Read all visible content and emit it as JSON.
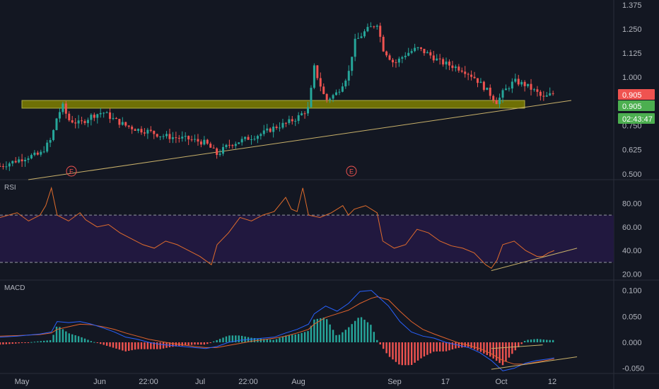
{
  "colors": {
    "background": "#131722",
    "up": "#26a69a",
    "down": "#ef5350",
    "support_zone": "#808000",
    "trendline": "#c8b06a",
    "rsi_line": "#e06c2c",
    "rsi_band": "#21183f",
    "macd_line": "#2962ff",
    "signal_line": "#e0622c",
    "hist_up": "#26a69a",
    "hist_down": "#ef5350",
    "price_badge": "#ef5350",
    "close_badge": "#4caf50"
  },
  "chart_data": [
    {
      "type": "candlestick",
      "pane": "price",
      "y_ticks": [
        "1.375",
        "1.250",
        "1.125",
        "1.000",
        "0.750",
        "0.625",
        "0.500"
      ],
      "ylim": [
        0.47,
        1.4
      ],
      "x_ticks": [
        "May",
        "Jun",
        "22:00",
        "Jul",
        "22:00",
        "Aug",
        "Sep",
        "17",
        "Oct",
        "12"
      ],
      "price_labels": {
        "last": "0.905",
        "close": "0.905",
        "countdown": "02:43:47"
      },
      "earnings_markers": [
        "E",
        "E"
      ],
      "support_zone": [
        0.84,
        0.88
      ],
      "trendline_points": [
        [
          0,
          0.47
        ],
        [
          100,
          0.88
        ]
      ],
      "close_path": [
        [
          0,
          0.54
        ],
        [
          3,
          0.57
        ],
        [
          5,
          0.59
        ],
        [
          7,
          0.6
        ],
        [
          9,
          0.68
        ],
        [
          10,
          0.8
        ],
        [
          11,
          0.85
        ],
        [
          12,
          0.78
        ],
        [
          14,
          0.76
        ],
        [
          16,
          0.8
        ],
        [
          18,
          0.82
        ],
        [
          20,
          0.78
        ],
        [
          22,
          0.75
        ],
        [
          24,
          0.73
        ],
        [
          26,
          0.72
        ],
        [
          28,
          0.7
        ],
        [
          30,
          0.69
        ],
        [
          33,
          0.68
        ],
        [
          36,
          0.66
        ],
        [
          38,
          0.6
        ],
        [
          40,
          0.65
        ],
        [
          42,
          0.67
        ],
        [
          44,
          0.69
        ],
        [
          46,
          0.71
        ],
        [
          48,
          0.74
        ],
        [
          50,
          0.76
        ],
        [
          52,
          0.79
        ],
        [
          54,
          0.84
        ],
        [
          55,
          1.05
        ],
        [
          57,
          0.88
        ],
        [
          59,
          0.92
        ],
        [
          61,
          1.02
        ],
        [
          62,
          1.18
        ],
        [
          64,
          1.24
        ],
        [
          66,
          1.28
        ],
        [
          67,
          1.15
        ],
        [
          69,
          1.07
        ],
        [
          71,
          1.12
        ],
        [
          73,
          1.15
        ],
        [
          75,
          1.12
        ],
        [
          77,
          1.08
        ],
        [
          79,
          1.06
        ],
        [
          81,
          1.04
        ],
        [
          83,
          1.0
        ],
        [
          85,
          0.94
        ],
        [
          87,
          0.87
        ],
        [
          88,
          0.92
        ],
        [
          90,
          0.98
        ],
        [
          92,
          0.96
        ],
        [
          94,
          0.92
        ],
        [
          95,
          0.89
        ],
        [
          97,
          0.92
        ]
      ]
    },
    {
      "type": "line",
      "pane": "rsi",
      "title": "RSI",
      "y_ticks": [
        "80.00",
        "60.00",
        "40.00",
        "20.00"
      ],
      "ylim": [
        15,
        100
      ],
      "band": [
        30,
        70
      ],
      "x": [
        0,
        3,
        5,
        7,
        8,
        9,
        10,
        12,
        14,
        15,
        17,
        19,
        21,
        23,
        25,
        27,
        29,
        31,
        33,
        35,
        37,
        38,
        40,
        42,
        44,
        46,
        48,
        50,
        51,
        52,
        53,
        54,
        56,
        58,
        60,
        61,
        62,
        64,
        66,
        67,
        69,
        71,
        73,
        75,
        77,
        79,
        81,
        83,
        85,
        86,
        87,
        88,
        90,
        92,
        94,
        95,
        96,
        97
      ],
      "values": [
        68,
        72,
        65,
        70,
        78,
        93,
        70,
        65,
        72,
        66,
        60,
        62,
        55,
        50,
        45,
        42,
        48,
        45,
        40,
        35,
        28,
        45,
        55,
        68,
        65,
        70,
        73,
        85,
        75,
        73,
        93,
        70,
        68,
        72,
        78,
        70,
        75,
        78,
        72,
        48,
        42,
        45,
        58,
        55,
        48,
        44,
        42,
        38,
        28,
        25,
        32,
        45,
        48,
        40,
        35,
        35,
        38,
        40
      ],
      "divergence_line": [
        [
          86,
          23
        ],
        [
          101,
          42
        ]
      ]
    },
    {
      "type": "line+histogram",
      "pane": "macd",
      "title": "MACD",
      "y_ticks": [
        "0.100",
        "0.050",
        "0.000",
        "-0.050"
      ],
      "ylim": [
        -0.06,
        0.12
      ],
      "x": [
        0,
        3,
        5,
        7,
        9,
        10,
        12,
        14,
        16,
        18,
        20,
        22,
        24,
        26,
        28,
        30,
        32,
        34,
        36,
        38,
        40,
        42,
        44,
        46,
        48,
        50,
        52,
        54,
        55,
        57,
        59,
        61,
        63,
        65,
        66,
        68,
        70,
        72,
        74,
        76,
        78,
        80,
        82,
        84,
        86,
        88,
        90,
        92,
        94,
        96,
        97
      ],
      "macd": [
        0.01,
        0.012,
        0.014,
        0.016,
        0.02,
        0.04,
        0.038,
        0.04,
        0.035,
        0.028,
        0.02,
        0.01,
        0.006,
        0.0,
        -0.004,
        -0.006,
        -0.008,
        -0.01,
        -0.012,
        -0.008,
        0.0,
        0.004,
        0.006,
        0.008,
        0.01,
        0.018,
        0.025,
        0.035,
        0.055,
        0.07,
        0.06,
        0.075,
        0.098,
        0.1,
        0.09,
        0.07,
        0.04,
        0.02,
        0.012,
        0.008,
        0.0,
        -0.005,
        -0.01,
        -0.02,
        -0.035,
        -0.055,
        -0.05,
        -0.04,
        -0.035,
        -0.032,
        -0.03
      ],
      "signal": [
        0.012,
        0.013,
        0.014,
        0.015,
        0.018,
        0.025,
        0.03,
        0.035,
        0.034,
        0.03,
        0.025,
        0.018,
        0.012,
        0.006,
        0.002,
        -0.002,
        -0.005,
        -0.008,
        -0.01,
        -0.01,
        -0.006,
        -0.002,
        0.002,
        0.005,
        0.008,
        0.012,
        0.018,
        0.025,
        0.035,
        0.048,
        0.055,
        0.062,
        0.075,
        0.085,
        0.088,
        0.082,
        0.06,
        0.04,
        0.025,
        0.016,
        0.008,
        0.0,
        -0.006,
        -0.012,
        -0.022,
        -0.035,
        -0.042,
        -0.042,
        -0.038,
        -0.034,
        -0.032
      ],
      "divergence_lines": [
        [
          [
            86,
            -0.012
          ],
          [
            95,
            -0.005
          ]
        ],
        [
          [
            86,
            -0.052
          ],
          [
            101,
            -0.028
          ]
        ]
      ]
    }
  ]
}
